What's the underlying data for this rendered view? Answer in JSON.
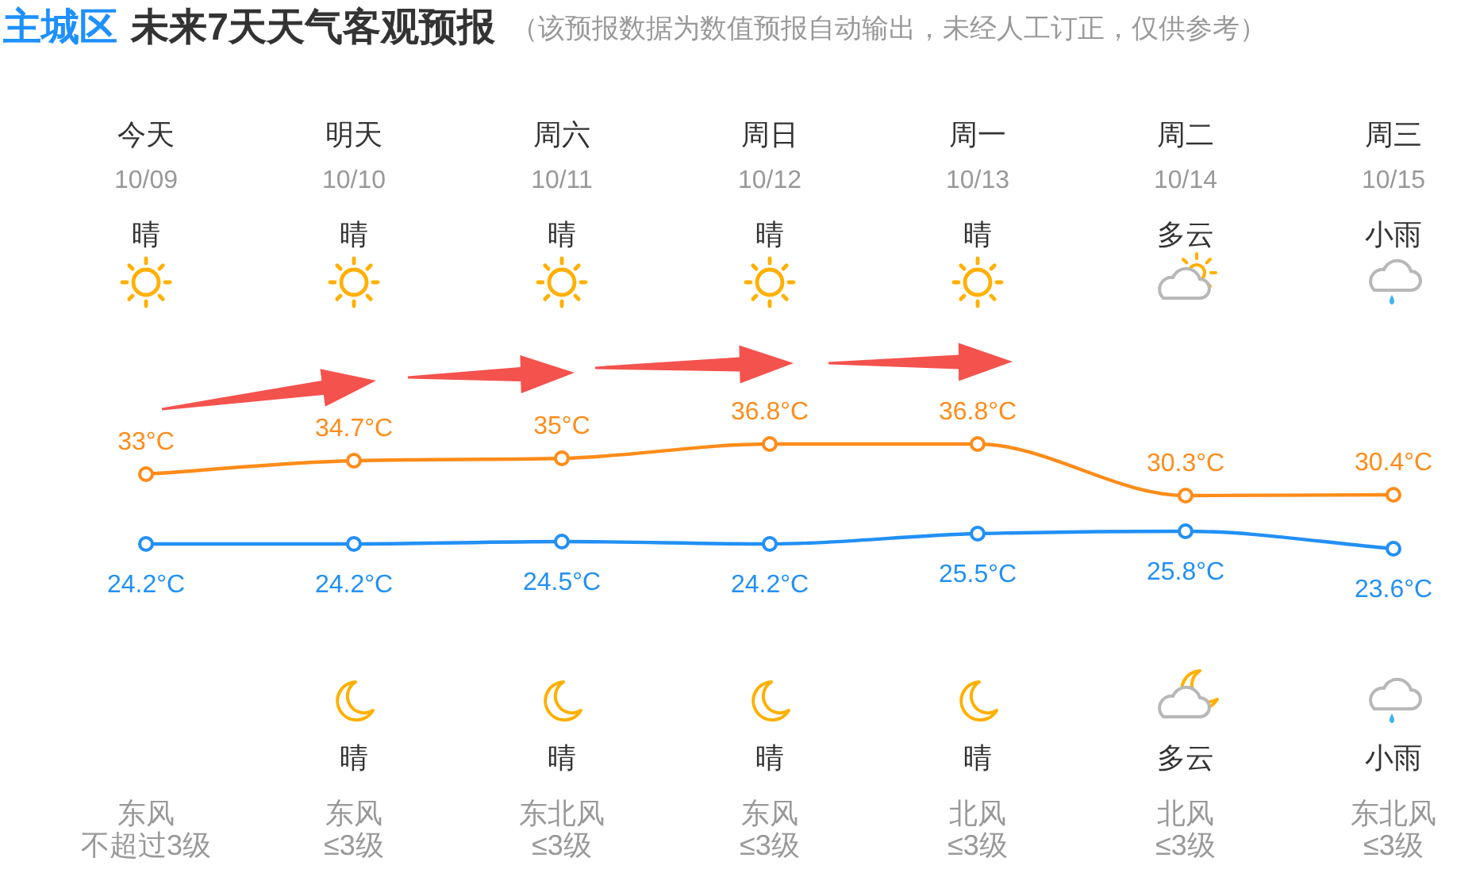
{
  "chart_data": {
    "type": "line",
    "title": "主城区 未来7天天气客观预报",
    "subtitle": "（该预报数据为数值预报自动输出，未经人工订正，仅供参考）",
    "categories": [
      "今天\n10/09",
      "明天\n10/10",
      "周六\n10/11",
      "周日\n10/12",
      "周一\n10/13",
      "周二\n10/14",
      "周三\n10/15"
    ],
    "series": [
      {
        "color": "#ff8c1a",
        "values": [
          33,
          34.7,
          35,
          36.8,
          36.8,
          30.3,
          30.4
        ],
        "value_labels": [
          "33°C",
          "34.7°C",
          "35°C",
          "36.8°C",
          "36.8°C",
          "30.3°C",
          "30.4°C"
        ]
      },
      {
        "color": "#2290f5",
        "values": [
          24.2,
          24.2,
          24.5,
          24.2,
          25.5,
          25.8,
          23.6
        ],
        "value_labels": [
          "24.2°C",
          "24.2°C",
          "24.5°C",
          "24.2°C",
          "25.5°C",
          "25.8°C",
          "23.6°C"
        ]
      }
    ],
    "marker": "circle",
    "annotations": [
      "晴",
      "晴",
      "晴",
      "晴",
      "晴",
      "多云",
      "小雨",
      "晴",
      "晴",
      "晴",
      "晴",
      "多云",
      "小雨",
      "东风",
      "东风",
      "东北风",
      "东风",
      "北风",
      "北风",
      "东北风",
      "不超过3级",
      "≤3级",
      "≤3级",
      "≤3级",
      "≤3级",
      "≤3级",
      "≤3级"
    ]
  }
}
